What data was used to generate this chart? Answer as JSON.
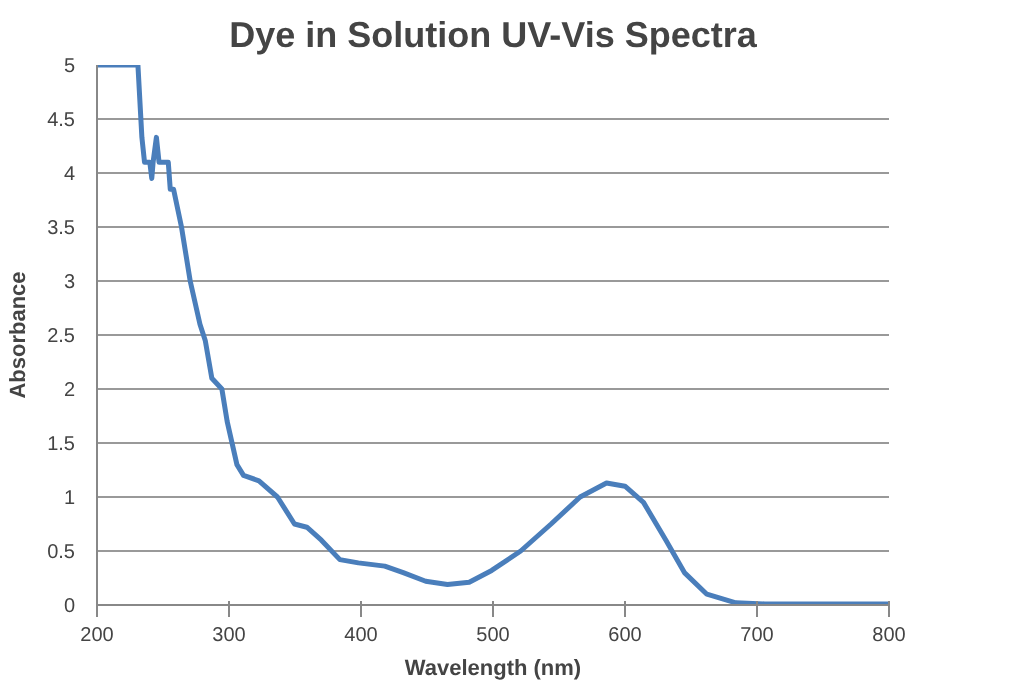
{
  "chart_data": {
    "type": "line",
    "title": "Dye in Solution UV-Vis Spectra",
    "xlabel": "Wavelength (nm)",
    "ylabel": "Absorbance",
    "xlim": [
      200,
      800
    ],
    "xticks": [
      200,
      300,
      400,
      500,
      600,
      700,
      800
    ],
    "ylim": [
      0,
      5
    ],
    "yticks": [
      0,
      0.5,
      1,
      1.5,
      2,
      2.5,
      3,
      3.5,
      4,
      4.5,
      5
    ],
    "grid": "y",
    "marker": "none",
    "line_style": "solid",
    "series": [
      {
        "color": "#4a7ebb",
        "x": [
          200,
          231,
          234,
          236,
          240,
          241.5,
          242.5,
          245,
          247,
          254,
          255.5,
          258,
          264,
          270.6,
          278,
          282,
          287,
          294.6,
          298.6,
          306,
          311,
          322.7,
          336.7,
          349.6,
          359,
          370,
          384,
          398,
          418,
          432,
          449,
          465.5,
          482,
          499,
          521,
          544,
          566,
          586,
          600,
          614,
          631,
          645,
          662,
          684,
          706,
          750,
          800
        ],
        "values": [
          5,
          5,
          4.33,
          4.1,
          4.1,
          3.95,
          4.1,
          4.33,
          4.1,
          4.1,
          3.85,
          3.85,
          3.5,
          3.0,
          2.6,
          2.45,
          2.1,
          2.0,
          1.7,
          1.3,
          1.2,
          1.15,
          1.0,
          0.75,
          0.72,
          0.6,
          0.42,
          0.39,
          0.36,
          0.3,
          0.22,
          0.19,
          0.21,
          0.32,
          0.5,
          0.75,
          1.0,
          1.13,
          1.1,
          0.95,
          0.6,
          0.3,
          0.1,
          0.02,
          0.01,
          0.01,
          0.01
        ]
      }
    ]
  }
}
